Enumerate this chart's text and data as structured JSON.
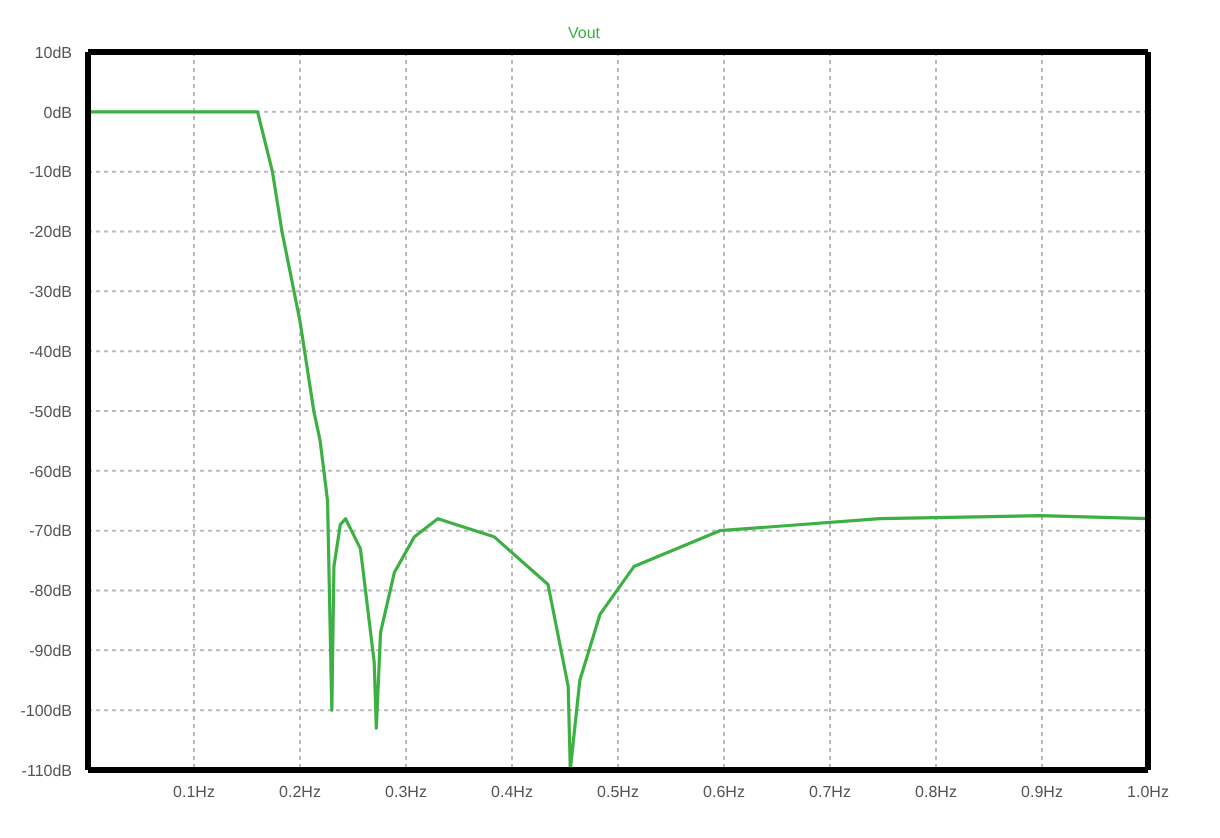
{
  "chart_data": {
    "type": "line",
    "legend": "top",
    "grid": true,
    "marker": "none",
    "line_style": "solid",
    "xlim": [
      0,
      1
    ],
    "xticks": [
      {
        "value": 0.1,
        "label": "0.1Hz"
      },
      {
        "value": 0.2,
        "label": "0.2Hz"
      },
      {
        "value": 0.3,
        "label": "0.3Hz"
      },
      {
        "value": 0.4,
        "label": "0.4Hz"
      },
      {
        "value": 0.5,
        "label": "0.5Hz"
      },
      {
        "value": 0.6,
        "label": "0.6Hz"
      },
      {
        "value": 0.7,
        "label": "0.7Hz"
      },
      {
        "value": 0.8,
        "label": "0.8Hz"
      },
      {
        "value": 0.9,
        "label": "0.9Hz"
      },
      {
        "value": 1.0,
        "label": "1.0Hz"
      }
    ],
    "ylim": [
      -110,
      10
    ],
    "yticks": [
      {
        "value": 10,
        "label": "10dB"
      },
      {
        "value": 0,
        "label": "0dB"
      },
      {
        "value": -10,
        "label": "-10dB"
      },
      {
        "value": -20,
        "label": "-20dB"
      },
      {
        "value": -30,
        "label": "-30dB"
      },
      {
        "value": -40,
        "label": "-40dB"
      },
      {
        "value": -50,
        "label": "-50dB"
      },
      {
        "value": -60,
        "label": "-60dB"
      },
      {
        "value": -70,
        "label": "-70dB"
      },
      {
        "value": -80,
        "label": "-80dB"
      },
      {
        "value": -90,
        "label": "-90dB"
      },
      {
        "value": -100,
        "label": "-100dB"
      },
      {
        "value": -110,
        "label": "-110dB"
      }
    ],
    "series": [
      {
        "name": "Vout",
        "color": "#3cb043",
        "x": [
          0,
          0.05,
          0.1,
          0.15,
          0.16,
          0.174,
          0.183,
          0.2,
          0.213,
          0.219,
          0.226,
          0.23,
          0.232,
          0.238,
          0.243,
          0.257,
          0.27,
          0.272,
          0.276,
          0.289,
          0.308,
          0.33,
          0.383,
          0.434,
          0.453,
          0.455,
          0.464,
          0.483,
          0.515,
          0.596,
          0.747,
          0.898,
          1.0
        ],
        "values": [
          0,
          0,
          0,
          0,
          0,
          -10,
          -20,
          -35,
          -50,
          -55,
          -65,
          -100,
          -76,
          -69,
          -68,
          -73,
          -92,
          -103,
          -87,
          -77,
          -71,
          -68,
          -71,
          -79,
          -96,
          -110,
          -95,
          -84,
          -76,
          -70,
          -68,
          -67.5,
          -68
        ]
      }
    ]
  }
}
